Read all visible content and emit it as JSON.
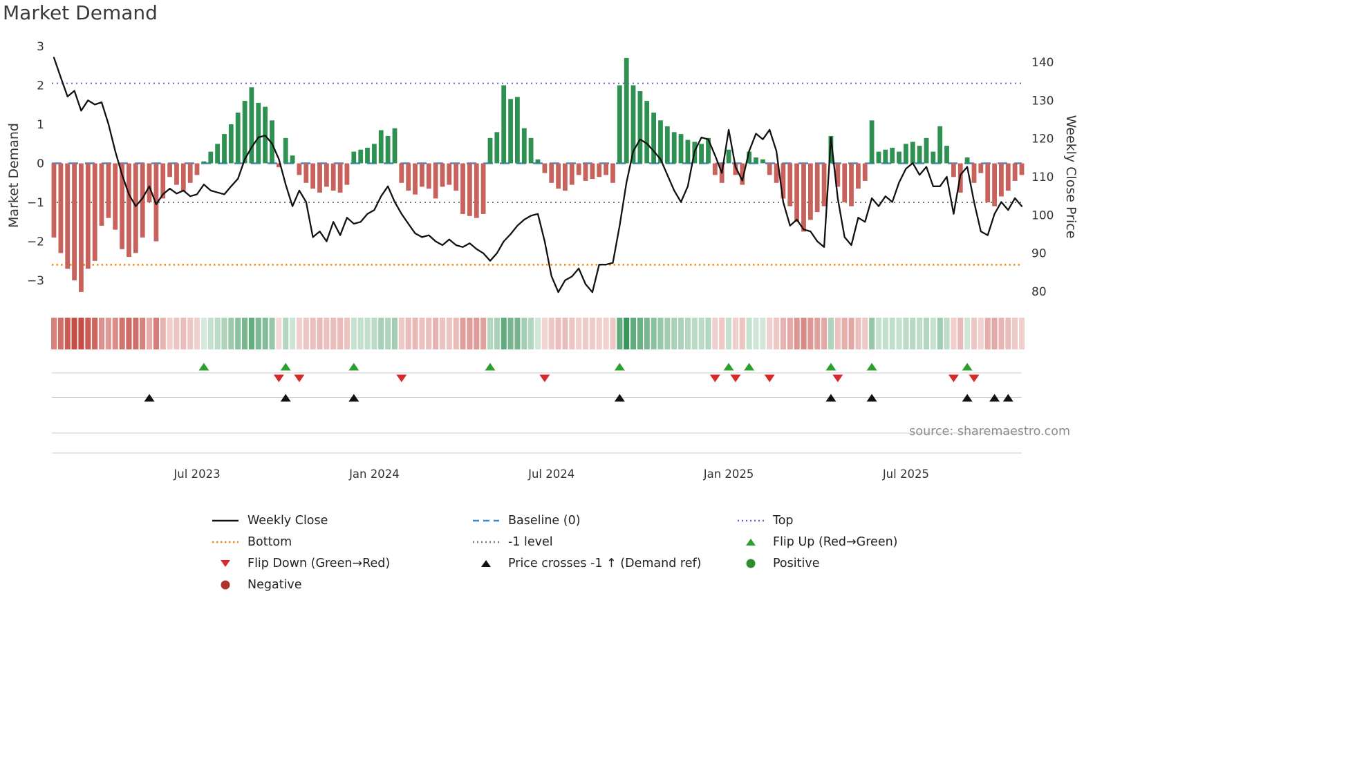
{
  "title": "Market Demand",
  "source": "source: sharemaestro.com",
  "axes": {
    "left_label": "Market Demand",
    "right_label": "Weekly Close Price",
    "left_ticks": [
      3,
      2,
      1,
      0,
      -1,
      -2,
      -3
    ],
    "right_ticks": [
      140,
      130,
      120,
      110,
      100,
      90,
      80
    ]
  },
  "colors": {
    "positive_bar": "#2e9152",
    "negative_bar": "#c8625c",
    "price_line": "#111111",
    "baseline": "#3a87c8",
    "top": "#6a5acd",
    "minus_one": "#777777",
    "bottom": "#e8860e",
    "flip_up": "#2ca02c",
    "flip_down": "#d62b2b",
    "price_cross": "#111111",
    "positive_dot": "#2e8b2e",
    "negative_dot": "#b03030",
    "heat_pos": [
      39,
      139,
      77
    ],
    "heat_neg": [
      197,
      77,
      70
    ]
  },
  "legend": {
    "weekly_close": "Weekly Close",
    "baseline": "Baseline (0)",
    "top": "Top",
    "bottom": "Bottom",
    "minus_one": "-1 level",
    "flip_up": "Flip Up (Red→Green)",
    "flip_down": "Flip Down (Green→Red)",
    "price_cross": "Price crosses -1 ↑ (Demand ref)",
    "positive": "Positive",
    "negative": "Negative"
  },
  "chart_data": {
    "type": "bar+line",
    "series": [
      {
        "name": "Market Demand",
        "type": "bar",
        "axis": "left"
      },
      {
        "name": "Weekly Close",
        "type": "line",
        "axis": "right"
      }
    ],
    "x_tick_labels": [
      "Jul 2023",
      "Jan 2024",
      "Jul 2024",
      "Jan 2025",
      "Jul 2025"
    ],
    "x_tick_weeks": [
      21,
      47,
      73,
      99,
      125
    ],
    "demand_ylim": [
      -3.6,
      3.2
    ],
    "price_ylim": [
      78,
      142
    ],
    "levels": {
      "top": 2.05,
      "baseline": 0,
      "minus_one": -1,
      "bottom": -2.6
    },
    "demand": [
      -1.9,
      -2.3,
      -2.7,
      -3.0,
      -3.3,
      -2.7,
      -2.5,
      -1.6,
      -1.4,
      -1.7,
      -2.2,
      -2.4,
      -2.3,
      -1.9,
      -1.0,
      -2.0,
      -0.9,
      -0.35,
      -0.55,
      -0.7,
      -0.5,
      -0.3,
      0.05,
      0.3,
      0.5,
      0.75,
      1.0,
      1.3,
      1.6,
      1.95,
      1.55,
      1.45,
      1.1,
      -0.1,
      0.65,
      0.2,
      -0.3,
      -0.5,
      -0.65,
      -0.75,
      -0.6,
      -0.7,
      -0.75,
      -0.55,
      0.3,
      0.35,
      0.4,
      0.5,
      0.85,
      0.7,
      0.9,
      -0.5,
      -0.7,
      -0.8,
      -0.6,
      -0.65,
      -0.9,
      -0.6,
      -0.55,
      -0.7,
      -1.3,
      -1.35,
      -1.4,
      -1.3,
      0.65,
      0.8,
      2.0,
      1.65,
      1.7,
      0.9,
      0.65,
      0.1,
      -0.25,
      -0.5,
      -0.65,
      -0.7,
      -0.55,
      -0.3,
      -0.45,
      -0.4,
      -0.35,
      -0.3,
      -0.5,
      2.0,
      2.7,
      2.0,
      1.85,
      1.6,
      1.3,
      1.1,
      0.95,
      0.8,
      0.75,
      0.6,
      0.55,
      0.5,
      0.65,
      -0.3,
      -0.5,
      0.35,
      -0.3,
      -0.55,
      0.3,
      0.15,
      0.1,
      -0.3,
      -0.5,
      -0.9,
      -1.1,
      -1.5,
      -1.75,
      -1.45,
      -1.25,
      -1.1,
      0.7,
      -0.6,
      -1.0,
      -1.1,
      -0.65,
      -0.45,
      1.1,
      0.3,
      0.35,
      0.4,
      0.3,
      0.5,
      0.55,
      0.45,
      0.65,
      0.3,
      0.95,
      0.45,
      -0.35,
      -0.75,
      0.15,
      -0.5,
      -0.25,
      -1.0,
      -1.1,
      -0.85,
      -0.7,
      -0.45,
      -0.3
    ],
    "price": [
      141.2,
      136.0,
      131.0,
      132.5,
      127.3,
      130.0,
      128.9,
      129.5,
      123.8,
      116.7,
      110.5,
      105.4,
      102.3,
      104.4,
      107.5,
      102.8,
      105.4,
      106.9,
      105.6,
      106.4,
      104.9,
      105.4,
      108.0,
      106.4,
      105.9,
      105.4,
      107.5,
      109.5,
      114.6,
      117.7,
      120.3,
      120.8,
      118.7,
      114.6,
      108.0,
      102.3,
      106.4,
      103.4,
      94.2,
      95.7,
      93.1,
      98.2,
      94.7,
      99.3,
      97.7,
      98.2,
      100.3,
      101.3,
      104.9,
      107.5,
      103.4,
      100.3,
      97.7,
      95.2,
      94.2,
      94.7,
      93.1,
      92.1,
      93.6,
      92.1,
      91.6,
      92.6,
      91.1,
      90.0,
      88.0,
      90.0,
      93.1,
      95.0,
      97.2,
      98.8,
      99.8,
      100.3,
      93.1,
      84.0,
      79.8,
      82.9,
      83.9,
      86.0,
      81.9,
      79.8,
      87.0,
      87.0,
      87.5,
      97.2,
      108.5,
      116.7,
      119.8,
      118.7,
      116.7,
      114.6,
      110.5,
      106.4,
      103.4,
      107.5,
      116.7,
      120.3,
      119.8,
      115.6,
      111.0,
      122.3,
      112.6,
      109.0,
      116.7,
      121.3,
      119.8,
      122.3,
      116.7,
      103.4,
      97.2,
      98.8,
      96.2,
      95.7,
      93.1,
      91.6,
      120.3,
      104.4,
      94.2,
      92.1,
      99.3,
      98.2,
      104.4,
      102.3,
      104.9,
      103.4,
      108.5,
      112.1,
      113.6,
      110.5,
      112.6,
      107.5,
      107.5,
      110.0,
      100.3,
      110.5,
      112.6,
      103.4,
      95.7,
      94.7,
      100.3,
      103.4,
      101.3,
      104.4,
      102.3
    ],
    "flip_up_weeks": [
      22,
      34,
      44,
      64,
      83,
      99,
      102,
      114,
      120,
      134
    ],
    "flip_down_weeks": [
      33,
      36,
      51,
      72,
      97,
      100,
      105,
      115,
      132,
      135
    ],
    "price_cross_weeks": [
      14,
      34,
      44,
      83,
      114,
      120,
      134,
      138,
      140
    ]
  }
}
